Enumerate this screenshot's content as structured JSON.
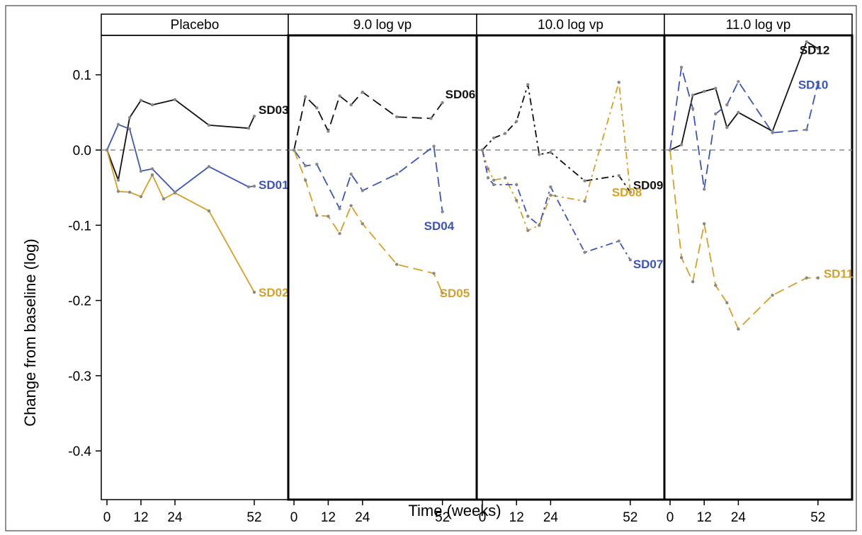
{
  "chart_data": {
    "type": "line",
    "ylabel": "Change from baseline (log)",
    "xlabel": "Time (weeks)",
    "ylim": [
      -0.42,
      0.15
    ],
    "xlim": [
      -2,
      64
    ],
    "x_ticks": [
      0,
      12,
      24,
      52
    ],
    "y_ticks": [
      0.1,
      0.0,
      -0.1,
      -0.2,
      -0.3,
      -0.4
    ],
    "y_tick_labels": [
      "0.1",
      "0.0",
      "-0.1",
      "-0.2",
      "-0.3",
      "-0.4"
    ],
    "reference_line": 0.0,
    "grid": false,
    "colors": {
      "black": "#111111",
      "blue": "#3c55b2",
      "orange": "#d4a02a",
      "reference": "#888888"
    },
    "panels": [
      {
        "label": "Placebo",
        "series": [
          {
            "name": "SD03",
            "color": "black",
            "dash": "solid",
            "x": [
              0,
              4,
              8,
              12,
              16,
              24,
              36,
              50,
              52
            ],
            "y": [
              0.0,
              -0.04,
              0.043,
              0.066,
              0.06,
              0.067,
              0.033,
              0.029,
              0.045
            ]
          },
          {
            "name": "SD01",
            "color": "blue",
            "dash": "solid",
            "x": [
              0,
              4,
              8,
              12,
              16,
              24,
              36,
              50,
              52
            ],
            "y": [
              0.0,
              0.034,
              0.028,
              -0.028,
              -0.025,
              -0.056,
              -0.022,
              -0.049,
              -0.048
            ]
          },
          {
            "name": "SD02",
            "color": "orange",
            "dash": "solid",
            "x": [
              0,
              4,
              8,
              12,
              16,
              20,
              24,
              36,
              52
            ],
            "y": [
              0.0,
              -0.055,
              -0.056,
              -0.062,
              -0.033,
              -0.065,
              -0.057,
              -0.081,
              -0.189
            ]
          }
        ]
      },
      {
        "label": "9.0 log vp",
        "series": [
          {
            "name": "SD06",
            "color": "black",
            "dash": "long",
            "x": [
              0,
              4,
              8,
              12,
              16,
              20,
              24,
              36,
              48,
              52
            ],
            "y": [
              0.0,
              0.071,
              0.056,
              0.025,
              0.072,
              0.06,
              0.077,
              0.044,
              0.042,
              0.063
            ]
          },
          {
            "name": "SD04",
            "color": "blue",
            "dash": "long",
            "x": [
              0,
              4,
              8,
              16,
              20,
              24,
              36,
              49,
              52
            ],
            "y": [
              0.0,
              -0.021,
              -0.019,
              -0.078,
              -0.032,
              -0.054,
              -0.032,
              0.005,
              -0.082
            ]
          },
          {
            "name": "SD05",
            "color": "orange",
            "dash": "long",
            "x": [
              0,
              4,
              8,
              12,
              16,
              20,
              24,
              36,
              49,
              52
            ],
            "y": [
              0.0,
              -0.04,
              -0.087,
              -0.088,
              -0.111,
              -0.074,
              -0.098,
              -0.152,
              -0.164,
              -0.19
            ]
          }
        ]
      },
      {
        "label": "10.0 log vp",
        "series": [
          {
            "name": "SD09",
            "color": "black",
            "dash": "dashdot",
            "x": [
              0,
              4,
              8,
              12,
              16,
              20,
              24,
              36,
              48,
              52
            ],
            "y": [
              0.0,
              0.016,
              0.022,
              0.038,
              0.087,
              -0.006,
              -0.003,
              -0.041,
              -0.034,
              -0.056
            ]
          },
          {
            "name": "SD08",
            "color": "orange",
            "dash": "dashdot",
            "x": [
              0,
              2,
              4,
              8,
              12,
              16,
              20,
              24,
              36,
              48,
              52
            ],
            "y": [
              0.0,
              -0.025,
              -0.04,
              -0.037,
              -0.067,
              -0.107,
              -0.1,
              -0.06,
              -0.068,
              0.09,
              -0.056
            ]
          },
          {
            "name": "SD07",
            "color": "blue",
            "dash": "dashdot",
            "x": [
              0,
              2,
              4,
              12,
              16,
              20,
              24,
              36,
              48,
              52
            ],
            "y": [
              0.0,
              -0.037,
              -0.046,
              -0.046,
              -0.088,
              -0.1,
              -0.049,
              -0.136,
              -0.121,
              -0.146
            ]
          }
        ]
      },
      {
        "label": "11.0 log vp",
        "series": [
          {
            "name": "SD12",
            "color": "black",
            "dash": "solid",
            "x": [
              0,
              4,
              8,
              12,
              16,
              20,
              24,
              36,
              48,
              52
            ],
            "y": [
              0.0,
              0.007,
              0.073,
              0.078,
              0.082,
              0.03,
              0.05,
              0.025,
              0.144,
              0.135
            ]
          },
          {
            "name": "SD10",
            "color": "blue",
            "dash": "long",
            "x": [
              0,
              4,
              8,
              12,
              16,
              20,
              24,
              36,
              48,
              52
            ],
            "y": [
              0.0,
              0.11,
              0.055,
              -0.052,
              0.048,
              0.06,
              0.091,
              0.023,
              0.027,
              0.089
            ]
          },
          {
            "name": "SD11",
            "color": "orange",
            "dash": "long",
            "x": [
              0,
              4,
              8,
              12,
              16,
              20,
              24,
              36,
              48,
              52
            ],
            "y": [
              0.0,
              -0.143,
              -0.175,
              -0.098,
              -0.18,
              -0.203,
              -0.238,
              -0.193,
              -0.17,
              -0.17
            ]
          }
        ]
      }
    ]
  }
}
